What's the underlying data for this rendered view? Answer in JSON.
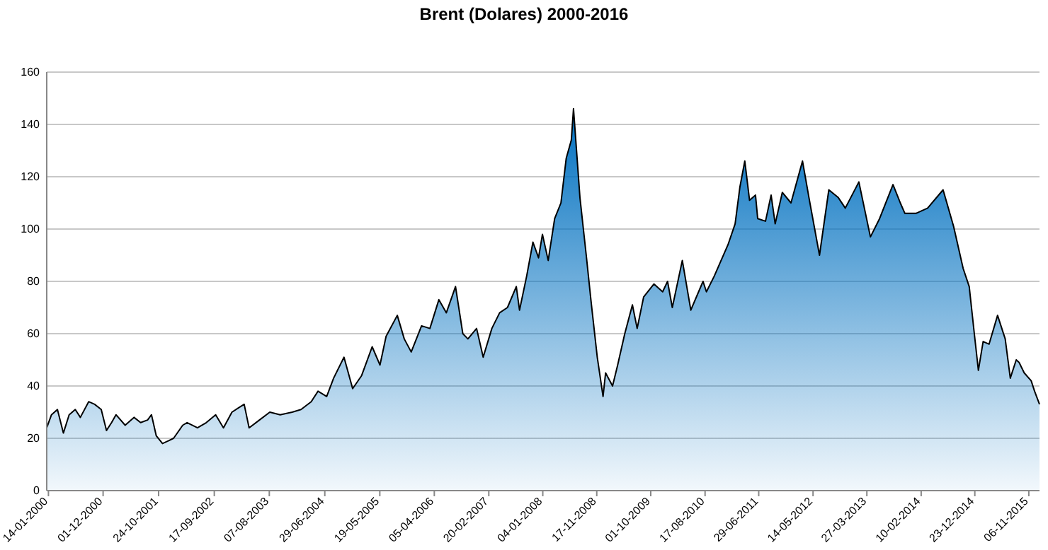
{
  "chart_data": {
    "type": "area",
    "title": "Brent (Dolares) 2000-2016",
    "xlim": [
      "2000-01-04",
      "2016-01-08"
    ],
    "xticks": [
      {
        "value": "2000-01-14",
        "label": "14-01-2000"
      },
      {
        "value": "2000-12-01",
        "label": "01-12-2000"
      },
      {
        "value": "2001-10-24",
        "label": "24-10-2001"
      },
      {
        "value": "2002-09-17",
        "label": "17-09-2002"
      },
      {
        "value": "2003-08-07",
        "label": "07-08-2003"
      },
      {
        "value": "2004-06-29",
        "label": "29-06-2004"
      },
      {
        "value": "2005-05-19",
        "label": "19-05-2005"
      },
      {
        "value": "2006-04-05",
        "label": "05-04-2006"
      },
      {
        "value": "2007-02-20",
        "label": "20-02-2007"
      },
      {
        "value": "2008-01-04",
        "label": "04-01-2008"
      },
      {
        "value": "2008-11-17",
        "label": "17-11-2008"
      },
      {
        "value": "2009-10-01",
        "label": "01-10-2009"
      },
      {
        "value": "2010-08-17",
        "label": "17-08-2010"
      },
      {
        "value": "2011-06-29",
        "label": "29-06-2011"
      },
      {
        "value": "2012-05-14",
        "label": "14-05-2012"
      },
      {
        "value": "2013-03-27",
        "label": "27-03-2013"
      },
      {
        "value": "2014-02-10",
        "label": "10-02-2014"
      },
      {
        "value": "2014-12-23",
        "label": "23-12-2014"
      },
      {
        "value": "2015-11-06",
        "label": "06-11-2015"
      }
    ],
    "ylim": [
      0,
      160
    ],
    "yticks": [
      0,
      20,
      40,
      60,
      80,
      100,
      120,
      140,
      160
    ],
    "grid": "y",
    "series": [
      {
        "color": "#0070c0",
        "x": [
          "2000-01-04",
          "2000-02-01",
          "2000-03-07",
          "2000-04-11",
          "2000-05-15",
          "2000-06-20",
          "2000-07-20",
          "2000-09-07",
          "2000-10-12",
          "2000-11-20",
          "2000-12-21",
          "2001-01-20",
          "2001-02-15",
          "2001-04-10",
          "2001-06-01",
          "2001-07-10",
          "2001-08-20",
          "2001-09-12",
          "2001-10-10",
          "2001-11-16",
          "2001-12-20",
          "2002-01-20",
          "2002-03-15",
          "2002-04-10",
          "2002-06-10",
          "2002-08-01",
          "2002-09-25",
          "2002-11-10",
          "2002-12-30",
          "2003-02-15",
          "2003-03-12",
          "2003-04-10",
          "2003-06-10",
          "2003-08-10",
          "2003-10-10",
          "2003-12-20",
          "2004-02-10",
          "2004-04-10",
          "2004-05-20",
          "2004-07-10",
          "2004-08-20",
          "2004-10-20",
          "2004-12-10",
          "2005-02-01",
          "2005-04-04",
          "2005-05-20",
          "2005-06-25",
          "2005-08-30",
          "2005-10-10",
          "2005-11-20",
          "2006-01-20",
          "2006-03-10",
          "2006-05-02",
          "2006-06-15",
          "2006-08-08",
          "2006-09-20",
          "2006-10-20",
          "2006-12-10",
          "2007-01-18",
          "2007-03-10",
          "2007-04-25",
          "2007-06-10",
          "2007-08-01",
          "2007-08-20",
          "2007-10-01",
          "2007-11-07",
          "2007-12-10",
          "2008-01-02",
          "2008-02-05",
          "2008-03-14",
          "2008-04-20",
          "2008-05-21",
          "2008-06-20",
          "2008-07-03",
          "2008-08-10",
          "2008-09-16",
          "2008-10-15",
          "2008-11-20",
          "2008-12-24",
          "2009-01-08",
          "2009-02-18",
          "2009-03-20",
          "2009-05-01",
          "2009-06-15",
          "2009-07-13",
          "2009-08-20",
          "2009-10-20",
          "2009-12-10",
          "2010-01-08",
          "2010-02-05",
          "2010-04-05",
          "2010-05-25",
          "2010-08-05",
          "2010-08-25",
          "2010-10-10",
          "2010-12-30",
          "2011-02-10",
          "2011-03-10",
          "2011-04-08",
          "2011-05-06",
          "2011-06-10",
          "2011-06-23",
          "2011-08-08",
          "2011-09-10",
          "2011-10-04",
          "2011-11-15",
          "2012-01-05",
          "2012-03-13",
          "2012-04-20",
          "2012-06-21",
          "2012-08-15",
          "2012-10-10",
          "2012-11-20",
          "2013-02-08",
          "2013-04-17",
          "2013-06-10",
          "2013-08-28",
          "2013-10-10",
          "2013-11-06",
          "2014-01-10",
          "2014-03-20",
          "2014-06-19",
          "2014-08-20",
          "2014-10-15",
          "2014-11-20",
          "2014-12-20",
          "2015-01-13",
          "2015-02-10",
          "2015-03-17",
          "2015-05-06",
          "2015-06-20",
          "2015-07-20",
          "2015-08-24",
          "2015-09-10",
          "2015-10-10",
          "2015-11-20",
          "2015-12-10",
          "2016-01-08"
        ],
        "values": [
          24,
          29,
          31,
          22,
          29,
          31,
          28,
          34,
          33,
          31,
          23,
          26,
          29,
          25,
          28,
          26,
          27,
          29,
          21,
          18,
          19,
          20,
          25,
          26,
          24,
          26,
          29,
          24,
          30,
          32,
          33,
          24,
          27,
          30,
          29,
          30,
          31,
          34,
          38,
          36,
          43,
          51,
          39,
          44,
          55,
          48,
          59,
          67,
          58,
          53,
          63,
          62,
          73,
          68,
          78,
          60,
          58,
          62,
          51,
          62,
          68,
          70,
          78,
          69,
          82,
          95,
          89,
          98,
          88,
          104,
          110,
          127,
          134,
          146,
          112,
          90,
          72,
          51,
          36,
          45,
          40,
          48,
          60,
          71,
          62,
          74,
          79,
          76,
          80,
          70,
          88,
          69,
          80,
          76,
          82,
          94,
          102,
          116,
          126,
          111,
          113,
          104,
          103,
          113,
          102,
          114,
          110,
          126,
          112,
          90,
          115,
          112,
          108,
          118,
          97,
          104,
          117,
          110,
          106,
          106,
          108,
          115,
          101,
          85,
          78,
          60,
          46,
          57,
          56,
          67,
          58,
          43,
          50,
          49,
          45,
          42,
          38,
          33
        ]
      }
    ]
  }
}
